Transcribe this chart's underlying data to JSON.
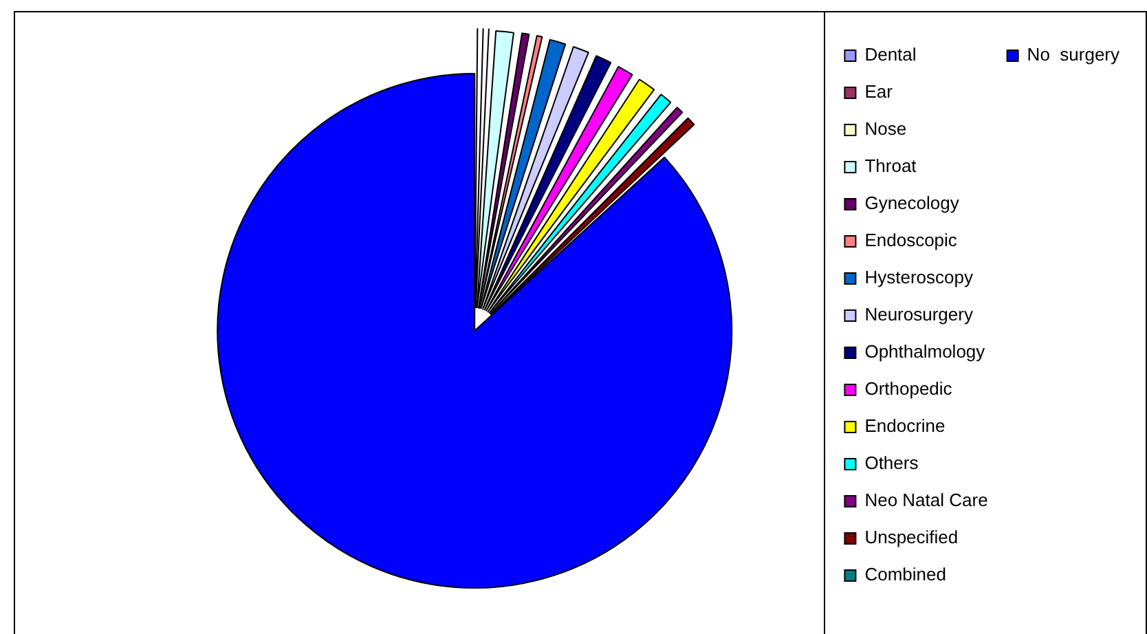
{
  "chart_data": {
    "type": "pie",
    "categories": [
      "Dental",
      "Ear",
      "Nose",
      "Throat",
      "Gynecology",
      "Endoscopic",
      "Hysteroscopy",
      "Neurosurgery",
      "Ophthalmology",
      "Orthopedic",
      "Endocrine",
      "Others",
      "Neo Natal Care",
      "Unspecified",
      "Combined",
      "No  surgery"
    ],
    "values": [
      0.3,
      0.3,
      0.3,
      1.4,
      0.8,
      0.7,
      1.3,
      1.3,
      1.3,
      1.3,
      1.4,
      1.1,
      0.8,
      0.9,
      null,
      86.7
    ],
    "colors": [
      "#9999ff",
      "#993366",
      "#ffffcc",
      "#ccffff",
      "#660066",
      "#ff8080",
      "#0066cc",
      "#ccccff",
      "#000080",
      "#ff00ff",
      "#ffff00",
      "#00ffff",
      "#800080",
      "#800000",
      "#008080",
      "#0000ff"
    ],
    "legend": "right"
  }
}
